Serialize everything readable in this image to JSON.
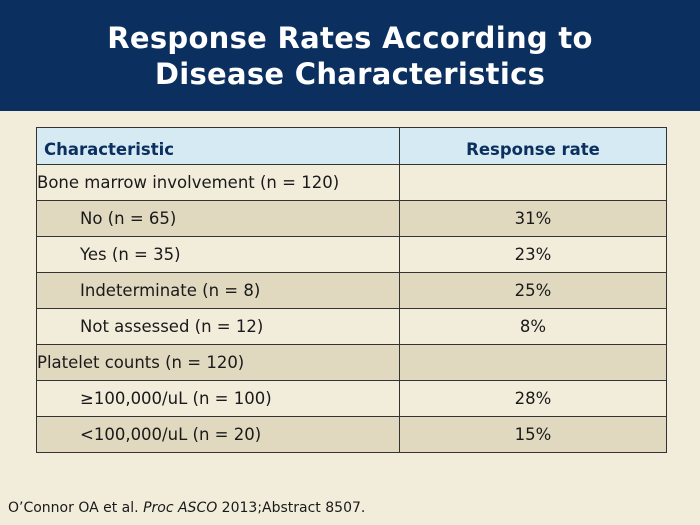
{
  "title": {
    "line1": "Response Rates According to",
    "line2": "Disease Characteristics"
  },
  "table": {
    "headers": [
      "Characteristic",
      "Response rate"
    ],
    "rows": [
      {
        "characteristic": "Bone marrow involvement (n = 120)",
        "rate": "",
        "indent": false
      },
      {
        "characteristic": "No (n = 65)",
        "rate": "31%",
        "indent": true
      },
      {
        "characteristic": "Yes (n = 35)",
        "rate": "23%",
        "indent": true
      },
      {
        "characteristic": "Indeterminate (n = 8)",
        "rate": "25%",
        "indent": true
      },
      {
        "characteristic": "Not assessed (n = 12)",
        "rate": "8%",
        "indent": true
      },
      {
        "characteristic": "Platelet counts (n = 120)",
        "rate": "",
        "indent": false
      },
      {
        "characteristic": "≥100,000/uL (n = 100)",
        "rate": "28%",
        "indent": true
      },
      {
        "characteristic": "<100,000/uL (n = 20)",
        "rate": "15%",
        "indent": true
      }
    ]
  },
  "citation": {
    "prefix": "O’Connor OA et al. ",
    "journal": "Proc ASCO",
    "suffix": " 2013;Abstract 8507."
  }
}
